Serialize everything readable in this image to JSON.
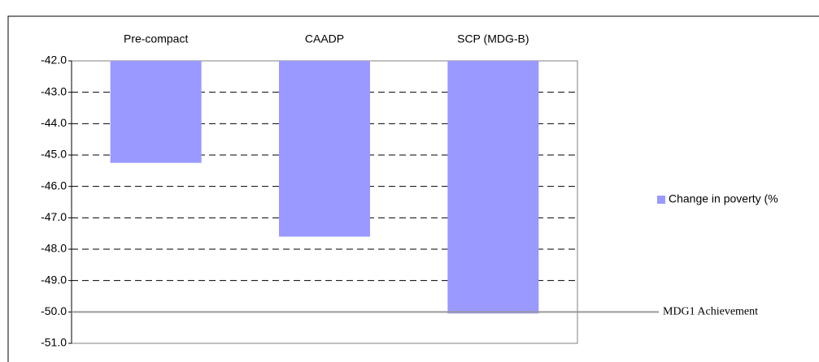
{
  "chart_data": {
    "type": "bar",
    "categories": [
      "Pre-compact",
      "CAADP",
      "SCP (MDG-B)"
    ],
    "series": [
      {
        "name": "Change in poverty (%",
        "color": "#9999ff",
        "values": [
          -45.25,
          -47.6,
          -50.05
        ]
      }
    ],
    "ylim": [
      -51,
      -42
    ],
    "yticks": [
      {
        "value": -42,
        "label": "-42.0"
      },
      {
        "value": -43,
        "label": "-43.0"
      },
      {
        "value": -44,
        "label": "-44.0"
      },
      {
        "value": -45,
        "label": "-45.0"
      },
      {
        "value": -46,
        "label": "-46.0"
      },
      {
        "value": -47,
        "label": "-47.0"
      },
      {
        "value": -48,
        "label": "-48.0"
      },
      {
        "value": -49,
        "label": "-49.0"
      },
      {
        "value": -50,
        "label": "-50.0"
      },
      {
        "value": -51,
        "label": "-51.0"
      }
    ],
    "grid": true,
    "legend": "right",
    "reference_line": {
      "label": "MDG1 Achievement",
      "value": -50,
      "color": "#999999"
    }
  }
}
